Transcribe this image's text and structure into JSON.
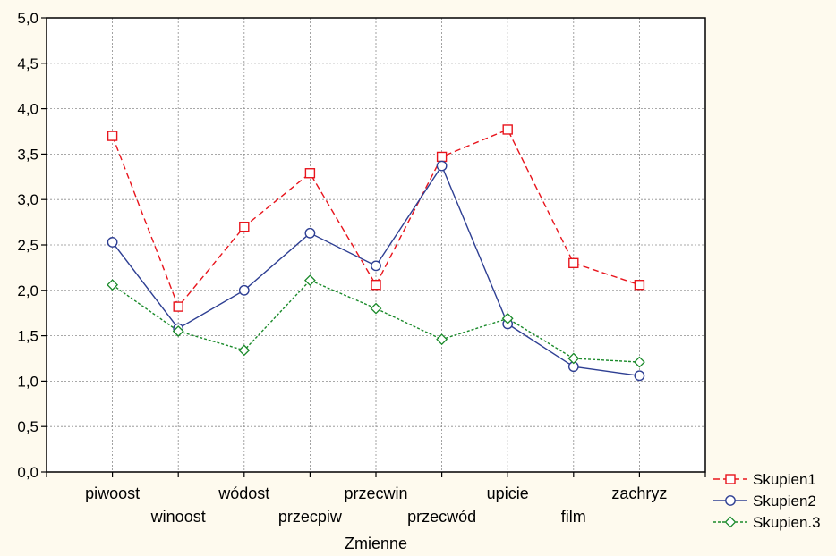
{
  "chart_data": {
    "type": "line",
    "title": "",
    "xlabel": "Zmienne",
    "ylabel": "",
    "categories": [
      "piwoost",
      "winoost",
      "wódost",
      "przecpiw",
      "przecwin",
      "przecwód",
      "upicie",
      "film",
      "zachryz"
    ],
    "ylim": [
      0.0,
      5.0
    ],
    "yticks": [
      "0,0",
      "0,5",
      "1,0",
      "1,5",
      "2,0",
      "2,5",
      "3,0",
      "3,5",
      "4,0",
      "4,5",
      "5,0"
    ],
    "grid": true,
    "legend_position": "bottom-right",
    "series": [
      {
        "name": "Skupien1",
        "values": [
          3.7,
          1.82,
          2.7,
          3.29,
          2.06,
          3.47,
          3.77,
          2.3,
          2.06
        ],
        "color": "#e8141c",
        "line_style": "dashed",
        "marker": "square"
      },
      {
        "name": "Skupien2",
        "values": [
          2.53,
          1.58,
          2.0,
          2.63,
          2.27,
          3.37,
          1.63,
          1.16,
          1.06
        ],
        "color": "#2e3f93",
        "line_style": "solid",
        "marker": "circle"
      },
      {
        "name": "Skupien.3",
        "values": [
          2.06,
          1.55,
          1.34,
          2.11,
          1.8,
          1.46,
          1.69,
          1.25,
          1.21
        ],
        "color": "#1a8a2a",
        "line_style": "dotted",
        "marker": "diamond"
      }
    ]
  }
}
